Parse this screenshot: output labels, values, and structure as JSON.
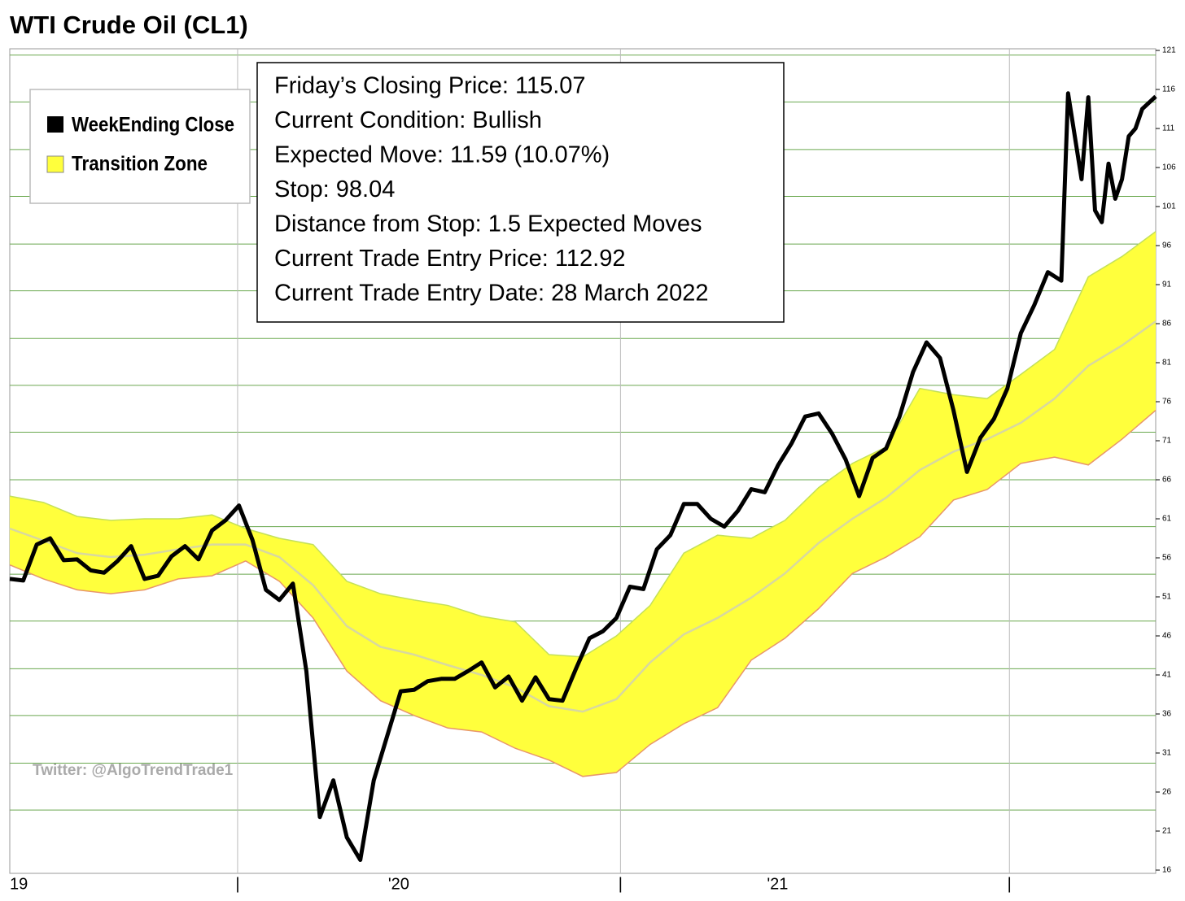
{
  "chart_data": {
    "type": "line",
    "title": "WTI Crude Oil (CL1)",
    "series": [
      {
        "name": "WeekEnding Close",
        "color": "#000000",
        "x": [
          0,
          2,
          4,
          6,
          8,
          10,
          12,
          14,
          16,
          18,
          20,
          22,
          24,
          26,
          28,
          30,
          32,
          34,
          36,
          38,
          40,
          42,
          44,
          46,
          48,
          50,
          52,
          54,
          56,
          58,
          60,
          62,
          64,
          66,
          68,
          70,
          72,
          74,
          76,
          78,
          80,
          82,
          84,
          86,
          88,
          90,
          92,
          94,
          96,
          98,
          100,
          102,
          104,
          106,
          108,
          110,
          112,
          114,
          116,
          118,
          120,
          122,
          124,
          126,
          128,
          130,
          132,
          134,
          136,
          138,
          140,
          142,
          144,
          146,
          148,
          150,
          152,
          154,
          156,
          157,
          158,
          159,
          160,
          161,
          162,
          163,
          164,
          165,
          166,
          167,
          168,
          170
        ],
        "values": [
          53.3,
          53.1,
          57.7,
          58.5,
          55.7,
          55.8,
          54.4,
          54.1,
          55.6,
          57.5,
          53.3,
          53.7,
          56.2,
          57.5,
          55.8,
          59.5,
          60.8,
          62.7,
          58.3,
          51.9,
          50.6,
          52.7,
          41.5,
          22.8,
          27.5,
          20.2,
          17.3,
          27.5,
          33.2,
          38.9,
          39.1,
          40.2,
          40.5,
          40.5,
          41.5,
          42.6,
          39.4,
          40.8,
          37.7,
          40.7,
          37.9,
          37.7,
          41.8,
          45.7,
          46.6,
          48.3,
          52.3,
          52.0,
          57.1,
          58.9,
          62.9,
          62.9,
          61.0,
          60.0,
          62.0,
          64.8,
          64.4,
          67.9,
          70.7,
          74.1,
          74.5,
          71.9,
          68.6,
          63.9,
          68.8,
          70.0,
          74.1,
          79.8,
          83.6,
          81.6,
          74.9,
          67.0,
          71.4,
          73.8,
          77.7,
          84.8,
          88.4,
          92.6,
          91.5,
          115.5,
          110.0,
          104.5,
          115.0,
          100.5,
          99.0,
          106.5,
          102.0,
          104.5,
          110.0,
          111.0,
          113.5,
          115.1
        ]
      }
    ],
    "band": {
      "name": "Transition Zone",
      "color": "#ffff3c",
      "upper_color": "#c4e05a",
      "lower_color": "#e8966a",
      "mid_color": "#d8d8a0",
      "x": [
        0,
        5,
        10,
        15,
        20,
        25,
        30,
        35,
        40,
        45,
        50,
        55,
        60,
        65,
        70,
        75,
        80,
        85,
        90,
        95,
        100,
        105,
        110,
        115,
        120,
        125,
        130,
        135,
        140,
        145,
        150,
        155,
        160,
        165,
        170
      ],
      "upper": [
        63.9,
        63.1,
        61.3,
        60.8,
        61.0,
        61.0,
        61.5,
        59.75,
        58.5,
        57.7,
        53.0,
        51.4,
        50.6,
        49.9,
        48.5,
        47.8,
        43.6,
        43.3,
        46.0,
        49.9,
        56.6,
        58.9,
        58.5,
        60.8,
        65.0,
        68.1,
        70.2,
        77.7,
        76.9,
        76.4,
        79.5,
        82.7,
        92.0,
        94.6,
        97.8
      ],
      "lower": [
        55.1,
        53.3,
        51.9,
        51.4,
        51.9,
        53.3,
        53.7,
        55.6,
        53.0,
        48.3,
        41.5,
        37.7,
        35.8,
        34.2,
        33.7,
        31.6,
        30.1,
        28.0,
        28.5,
        32.1,
        34.75,
        36.8,
        42.9,
        45.7,
        49.5,
        54.0,
        56.1,
        58.7,
        63.4,
        64.75,
        68.1,
        68.9,
        67.9,
        71.2,
        74.9
      ],
      "mid": [
        59.75,
        58.2,
        56.6,
        56.1,
        56.4,
        57.1,
        57.7,
        57.7,
        56.1,
        52.5,
        47.25,
        44.6,
        43.6,
        42.25,
        41.0,
        39.4,
        37.0,
        36.3,
        37.9,
        42.6,
        46.2,
        48.3,
        50.9,
        54.0,
        57.9,
        61.0,
        63.7,
        67.25,
        69.6,
        71.2,
        73.3,
        76.4,
        80.6,
        83.2,
        86.3
      ]
    },
    "xlim": [
      0,
      170
    ],
    "xticks": [
      {
        "value": 0,
        "label": "19"
      },
      {
        "value": 33.8,
        "label": "|"
      },
      {
        "value": 57.7,
        "label": "'20"
      },
      {
        "value": 90.6,
        "label": "|"
      },
      {
        "value": 113.9,
        "label": "'21"
      },
      {
        "value": 148.3,
        "label": "|"
      }
    ],
    "xgrid": [
      33.8,
      90.6,
      148.3
    ],
    "ylim": [
      16,
      121
    ],
    "yticks": [
      16,
      21,
      26,
      31,
      36,
      41,
      46,
      51,
      56,
      61,
      66,
      71,
      76,
      81,
      86,
      91,
      96,
      101,
      106,
      111,
      116,
      121
    ],
    "ygrid": [
      23.7,
      29.7,
      35.8,
      41.8,
      47.9,
      53.9,
      60.0,
      66.0,
      72.1,
      78.1,
      84.1,
      90.2,
      96.2,
      102.3,
      108.3,
      114.4,
      120.4
    ],
    "info": [
      "Friday’s Closing Price: 115.07",
      "Current Condition: Bullish",
      "Expected Move: 11.59 (10.07%)",
      "Stop: 98.04",
      "Distance from Stop: 1.5 Expected Moves",
      "Current Trade Entry Price: 112.92",
      "Current Trade Entry Date: 28 March 2022"
    ],
    "watermark": "Twitter: @AlgoTrendTrade1"
  }
}
